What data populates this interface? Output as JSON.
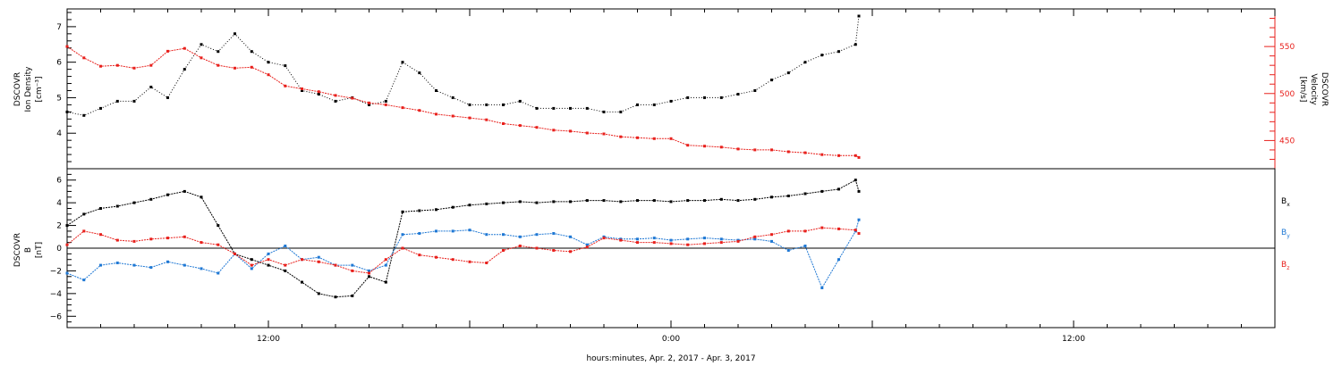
{
  "x_axis": {
    "title": "hours:minutes, Apr.  2, 2017 - Apr.  3, 2017",
    "range_hours": [
      0,
      36
    ],
    "tick_labels": [
      {
        "label": "12:00",
        "hours": 6
      },
      {
        "label": "0:00",
        "hours": 18
      },
      {
        "label": "12:00",
        "hours": 30
      }
    ],
    "major_tick_step_hours": 1
  },
  "top_panel": {
    "left_label_lines": [
      "DSCOVR",
      "Ion Density",
      "[cm⁻³]"
    ],
    "right_label_lines": [
      "DSCOVR",
      "Velocity",
      "[km/s]"
    ],
    "left_axis": {
      "min": 3.0,
      "max": 7.5,
      "ticks": [
        "4",
        "5",
        "6",
        "7"
      ],
      "tick_values": [
        4,
        5,
        6,
        7
      ]
    },
    "right_axis": {
      "min": 420,
      "max": 590,
      "ticks": [
        "450",
        "500",
        "550"
      ],
      "tick_values": [
        450,
        500,
        550
      ]
    }
  },
  "bottom_panel": {
    "left_label_lines": [
      "DSCOVR",
      "B",
      "[nT]"
    ],
    "axis": {
      "min": -7,
      "max": 7,
      "ticks": [
        "6",
        "4",
        "2",
        "0",
        "−2",
        "−4",
        "−6"
      ],
      "tick_values": [
        6,
        4,
        2,
        0,
        -2,
        -4,
        -6
      ]
    },
    "legend": [
      "B",
      "B",
      "B"
    ],
    "legend_subscripts": [
      "x",
      "y",
      "z"
    ]
  },
  "colors": {
    "density": "#000000",
    "velocity": "#e8201c",
    "bx": "#000000",
    "by": "#1f78d4",
    "bz": "#e8201c",
    "axis": "#000000"
  },
  "chart_data": [
    {
      "type": "scatter",
      "name": "ion-density-velocity",
      "x_unit": "hours since Apr. 2, 2017 06:00",
      "series": [
        {
          "axis": "left",
          "x": [
            0,
            0.5,
            1,
            1.5,
            2,
            2.5,
            3,
            3.5,
            4,
            4.5,
            5,
            5.5,
            6,
            6.5,
            7,
            7.5,
            8,
            8.5,
            9,
            9.5,
            10,
            10.5,
            11,
            11.5,
            12,
            12.5,
            13,
            13.5,
            14,
            14.5,
            15,
            15.5,
            16,
            16.5,
            17,
            17.5,
            18,
            18.5,
            19,
            19.5,
            20,
            20.5,
            21,
            21.5,
            22,
            22.5,
            23,
            23.5,
            23.6
          ],
          "values": [
            4.6,
            4.5,
            4.7,
            4.9,
            4.9,
            5.3,
            5.0,
            5.8,
            6.5,
            6.3,
            6.8,
            6.3,
            6.0,
            5.9,
            5.2,
            5.1,
            4.9,
            5.0,
            4.8,
            4.9,
            6.0,
            5.7,
            5.2,
            5.0,
            4.8,
            4.8,
            4.8,
            4.9,
            4.7,
            4.7,
            4.7,
            4.7,
            4.6,
            4.6,
            4.8,
            4.8,
            4.9,
            5.0,
            5.0,
            5.0,
            5.1,
            5.2,
            5.5,
            5.7,
            6.0,
            6.2,
            6.3,
            6.5,
            7.3
          ]
        },
        {
          "axis": "right",
          "x": [
            0,
            0.5,
            1,
            1.5,
            2,
            2.5,
            3,
            3.5,
            4,
            4.5,
            5,
            5.5,
            6,
            6.5,
            7,
            7.5,
            8,
            8.5,
            9,
            9.5,
            10,
            10.5,
            11,
            11.5,
            12,
            12.5,
            13,
            13.5,
            14,
            14.5,
            15,
            15.5,
            16,
            16.5,
            17,
            17.5,
            18,
            18.5,
            19,
            19.5,
            20,
            20.5,
            21,
            21.5,
            22,
            22.5,
            23,
            23.5,
            23.6
          ],
          "values": [
            550,
            538,
            529,
            530,
            527,
            530,
            545,
            548,
            538,
            530,
            527,
            528,
            520,
            508,
            505,
            502,
            498,
            495,
            490,
            488,
            485,
            482,
            478,
            476,
            474,
            472,
            468,
            466,
            464,
            461,
            460,
            458,
            457,
            454,
            453,
            452,
            452,
            445,
            444,
            443,
            441,
            440,
            440,
            438,
            437,
            435,
            434,
            434,
            432
          ]
        }
      ]
    },
    {
      "type": "scatter",
      "name": "magnetic-field",
      "x_unit": "hours since Apr. 2, 2017 06:00",
      "series": [
        {
          "x": [
            0,
            0.5,
            1,
            1.5,
            2,
            2.5,
            3,
            3.5,
            4,
            4.5,
            5,
            5.5,
            6,
            6.5,
            7,
            7.5,
            8,
            8.5,
            9,
            9.5,
            10,
            10.5,
            11,
            11.5,
            12,
            12.5,
            13,
            13.5,
            14,
            14.5,
            15,
            15.5,
            16,
            16.5,
            17,
            17.5,
            18,
            18.5,
            19,
            19.5,
            20,
            20.5,
            21,
            21.5,
            22,
            22.5,
            23,
            23.5,
            23.6
          ],
          "values": [
            2.0,
            3.0,
            3.5,
            3.7,
            4.0,
            4.3,
            4.7,
            5.0,
            4.5,
            2.0,
            -0.5,
            -1.0,
            -1.5,
            -2.0,
            -3.0,
            -4.0,
            -4.3,
            -4.2,
            -2.5,
            -3.0,
            3.2,
            3.3,
            3.4,
            3.6,
            3.8,
            3.9,
            4.0,
            4.1,
            4.0,
            4.1,
            4.1,
            4.2,
            4.2,
            4.1,
            4.2,
            4.2,
            4.1,
            4.2,
            4.2,
            4.3,
            4.2,
            4.3,
            4.5,
            4.6,
            4.8,
            5.0,
            5.2,
            6.0,
            5.0
          ]
        },
        {
          "x": [
            0,
            0.5,
            1,
            1.5,
            2,
            2.5,
            3,
            3.5,
            4,
            4.5,
            5,
            5.5,
            6,
            6.5,
            7,
            7.5,
            8,
            8.5,
            9,
            9.5,
            10,
            10.5,
            11,
            11.5,
            12,
            12.5,
            13,
            13.5,
            14,
            14.5,
            15,
            15.5,
            16,
            16.5,
            17,
            17.5,
            18,
            18.5,
            19,
            19.5,
            20,
            20.5,
            21,
            21.5,
            22,
            22.5,
            23,
            23.5,
            23.6
          ],
          "values": [
            -2.2,
            -2.8,
            -1.5,
            -1.3,
            -1.5,
            -1.7,
            -1.2,
            -1.5,
            -1.8,
            -2.2,
            -0.5,
            -1.8,
            -0.5,
            0.2,
            -1.0,
            -0.8,
            -1.5,
            -1.5,
            -2.0,
            -1.5,
            1.2,
            1.3,
            1.5,
            1.5,
            1.6,
            1.2,
            1.2,
            1.0,
            1.2,
            1.3,
            1.0,
            0.3,
            1.0,
            0.8,
            0.8,
            0.9,
            0.7,
            0.8,
            0.9,
            0.8,
            0.7,
            0.8,
            0.6,
            -0.2,
            0.2,
            -3.5,
            -1.0,
            1.5,
            2.5
          ]
        },
        {
          "x": [
            0,
            0.5,
            1,
            1.5,
            2,
            2.5,
            3,
            3.5,
            4,
            4.5,
            5,
            5.5,
            6,
            6.5,
            7,
            7.5,
            8,
            8.5,
            9,
            9.5,
            10,
            10.5,
            11,
            11.5,
            12,
            12.5,
            13,
            13.5,
            14,
            14.5,
            15,
            15.5,
            16,
            16.5,
            17,
            17.5,
            18,
            18.5,
            19,
            19.5,
            20,
            20.5,
            21,
            21.5,
            22,
            22.5,
            23,
            23.5,
            23.6
          ],
          "values": [
            0.3,
            1.5,
            1.2,
            0.7,
            0.6,
            0.8,
            0.9,
            1.0,
            0.5,
            0.3,
            -0.5,
            -1.5,
            -1.0,
            -1.5,
            -1.0,
            -1.2,
            -1.5,
            -2.0,
            -2.2,
            -1.0,
            0.0,
            -0.6,
            -0.8,
            -1.0,
            -1.2,
            -1.3,
            -0.2,
            0.2,
            0.0,
            -0.2,
            -0.3,
            0.1,
            0.9,
            0.7,
            0.5,
            0.5,
            0.4,
            0.3,
            0.4,
            0.5,
            0.6,
            1.0,
            1.2,
            1.5,
            1.5,
            1.8,
            1.7,
            1.6,
            1.3
          ]
        }
      ]
    }
  ]
}
